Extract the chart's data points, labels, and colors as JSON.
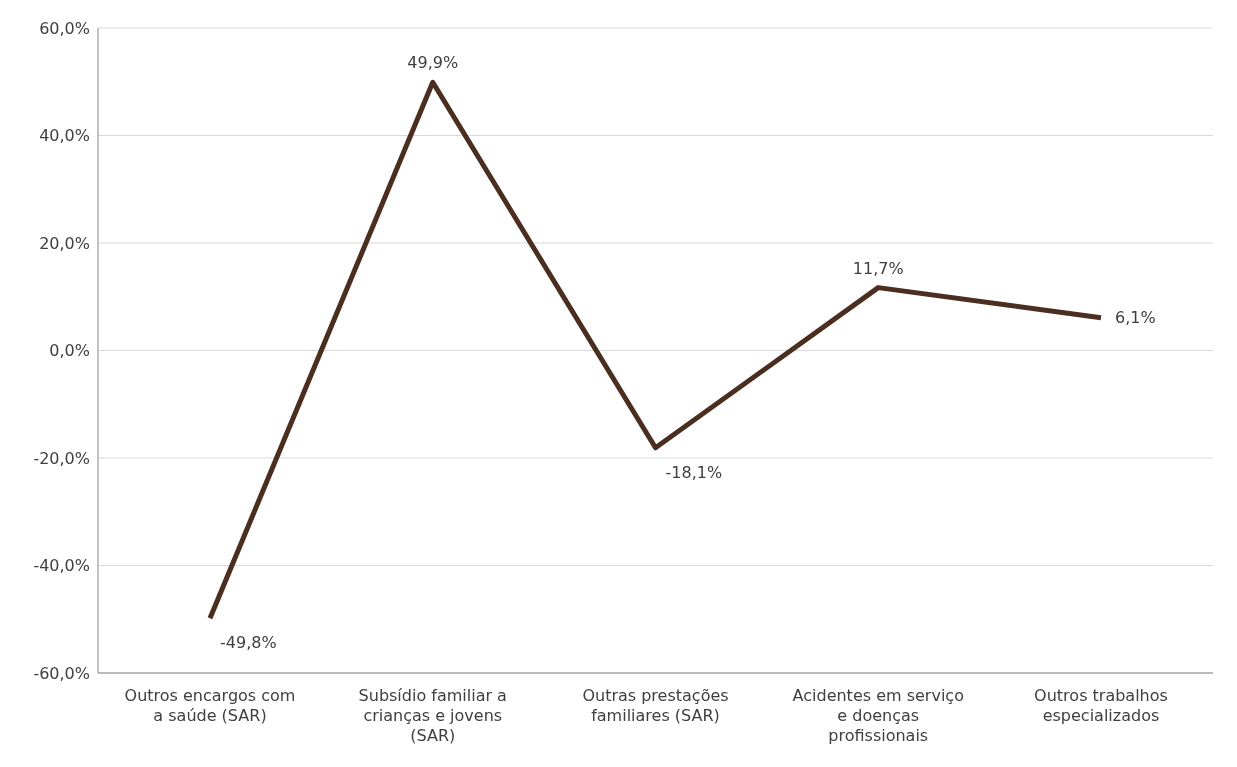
{
  "chart_data": {
    "type": "line",
    "categories": [
      "Outros encargos com a saúde (SAR)",
      "Subsídio familiar a crianças e jovens (SAR)",
      "Outras prestações familiares (SAR)",
      "Acidentes em serviço e doenças profissionais",
      "Outros trabalhos especializados"
    ],
    "series": [
      {
        "color": "#4a2e1f",
        "values": [
          -49.8,
          49.9,
          -18.1,
          11.7,
          6.1
        ],
        "value_labels": [
          "-49,8%",
          "49,9%",
          "-18,1%",
          "11,7%",
          "6,1%"
        ]
      }
    ],
    "ylim": [
      -60,
      60
    ],
    "yticks": [
      {
        "value": -60,
        "label": "-60,0%"
      },
      {
        "value": -40,
        "label": "-40,0%"
      },
      {
        "value": -20,
        "label": "-20,0%"
      },
      {
        "value": 0,
        "label": "0,0%"
      },
      {
        "value": 20,
        "label": "20,0%"
      },
      {
        "value": 40,
        "label": "40,0%"
      },
      {
        "value": 60,
        "label": "60,0%"
      }
    ],
    "grid": "y",
    "marker": "none",
    "line_style": "solid",
    "legend": false
  }
}
